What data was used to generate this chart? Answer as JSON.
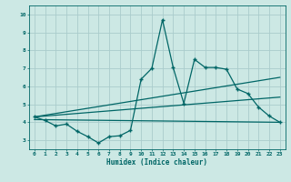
{
  "title": "",
  "xlabel": "Humidex (Indice chaleur)",
  "ylabel": "",
  "bg_color": "#cce8e4",
  "grid_color": "#aacccc",
  "line_color": "#006666",
  "xlim": [
    -0.5,
    23.5
  ],
  "ylim": [
    2.5,
    10.5
  ],
  "xticks": [
    0,
    1,
    2,
    3,
    4,
    5,
    6,
    7,
    8,
    9,
    10,
    11,
    12,
    13,
    14,
    15,
    16,
    17,
    18,
    19,
    20,
    21,
    22,
    23
  ],
  "yticks": [
    3,
    4,
    5,
    6,
    7,
    8,
    9,
    10
  ],
  "main_x": [
    0,
    1,
    2,
    3,
    4,
    5,
    6,
    7,
    8,
    9,
    10,
    11,
    12,
    13,
    14,
    15,
    16,
    17,
    18,
    19,
    20,
    21,
    22,
    23
  ],
  "main_y": [
    4.3,
    4.1,
    3.8,
    3.9,
    3.5,
    3.2,
    2.85,
    3.2,
    3.25,
    3.55,
    6.4,
    7.0,
    9.7,
    7.05,
    5.05,
    7.5,
    7.05,
    7.05,
    6.95,
    5.85,
    5.6,
    4.85,
    4.35,
    4.0
  ],
  "trend1_x": [
    0,
    23
  ],
  "trend1_y": [
    4.3,
    6.5
  ],
  "trend2_x": [
    0,
    23
  ],
  "trend2_y": [
    4.3,
    5.4
  ],
  "trend3_x": [
    0,
    23
  ],
  "trend3_y": [
    4.15,
    4.0
  ]
}
